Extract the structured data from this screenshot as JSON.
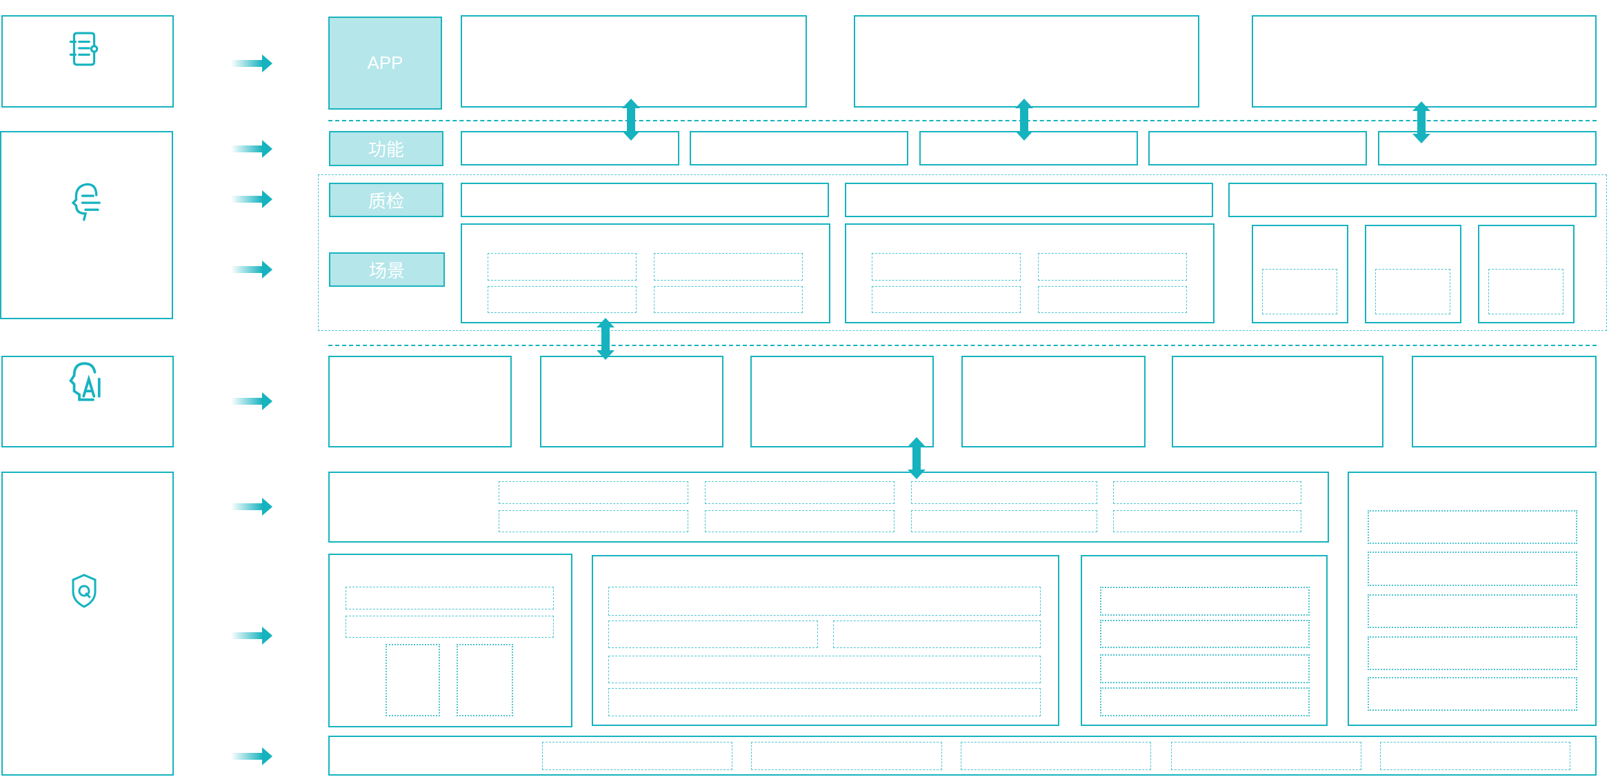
{
  "colors": {
    "accent": "#16b3bf",
    "label_fill": "#b4e6ea",
    "label_text": "#ffffff"
  },
  "layers": {
    "app_label": "APP",
    "function_label": "功能",
    "qc_label": "质检",
    "scene_label": "场景"
  },
  "icons": [
    "checklist-icon",
    "head-speech-icon",
    "head-ai-icon",
    "shield-q-icon"
  ]
}
